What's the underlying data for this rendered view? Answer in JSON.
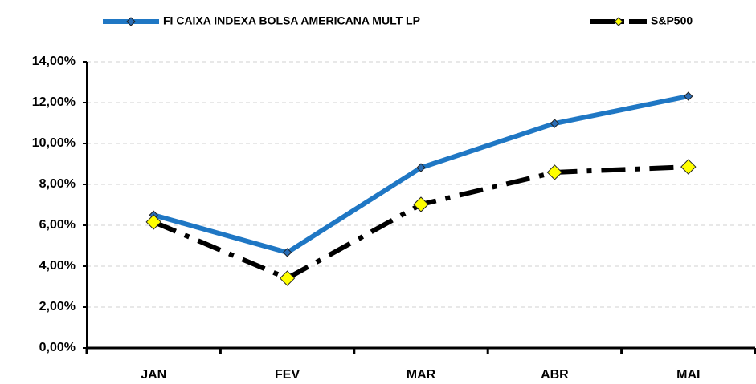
{
  "chart_data": {
    "type": "line",
    "categories": [
      "JAN",
      "FEV",
      "MAR",
      "ABR",
      "MAI"
    ],
    "series": [
      {
        "name": "FI CAIXA INDEXA BOLSA AMERICANA MULT LP",
        "color": "#1f77c4",
        "marker_color": "#2a6db5",
        "values": [
          6.5,
          4.67,
          8.82,
          10.98,
          12.31
        ]
      },
      {
        "name": "S&P500",
        "color": "#000000",
        "marker_color": "#ffff00",
        "values": [
          6.16,
          3.41,
          7.02,
          8.59,
          8.86
        ]
      }
    ],
    "ylim": [
      0,
      14
    ],
    "yticks": [
      {
        "value": 0,
        "label": "0,00%"
      },
      {
        "value": 2,
        "label": "2,00%"
      },
      {
        "value": 4,
        "label": "4,00%"
      },
      {
        "value": 6,
        "label": "6,00%"
      },
      {
        "value": 8,
        "label": "8,00%"
      },
      {
        "value": 10,
        "label": "10,00%"
      },
      {
        "value": 12,
        "label": "12,00%"
      },
      {
        "value": 14,
        "label": "14,00%"
      }
    ],
    "grid": true,
    "legend": "top"
  }
}
